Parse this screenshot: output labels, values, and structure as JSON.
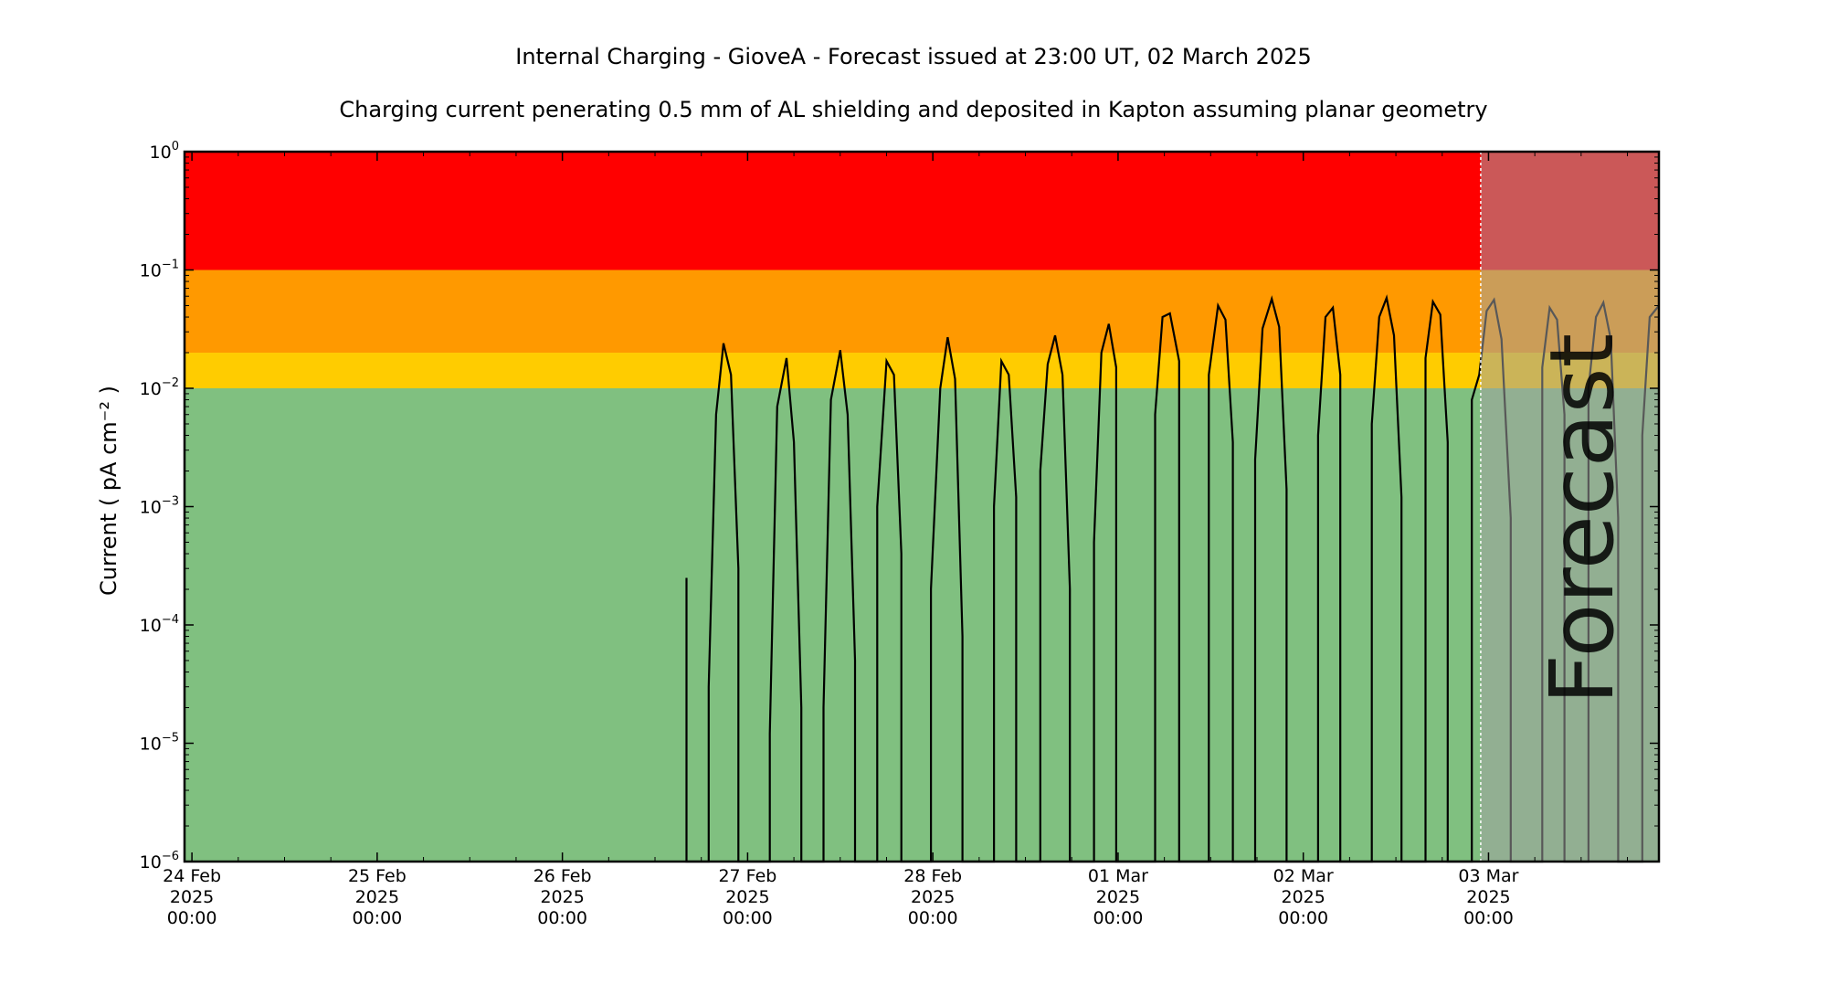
{
  "chart_data": {
    "type": "line",
    "title": "Internal Charging - GioveA - Forecast issued at 23:00 UT, 02 March 2025",
    "subtitle": "Charging current penerating 0.5 mm of AL shielding and deposited in Kapton assuming planar geometry",
    "ylabel": "Current ( pA cm⁻² )",
    "yscale": "log",
    "ylim_exp": [
      -6,
      0
    ],
    "y_tick_labels": [
      {
        "base": "10",
        "exp": "−6",
        "e": -6
      },
      {
        "base": "10",
        "exp": "−5",
        "e": -5
      },
      {
        "base": "10",
        "exp": "−4",
        "e": -4
      },
      {
        "base": "10",
        "exp": "−3",
        "e": -3
      },
      {
        "base": "10",
        "exp": "−2",
        "e": -2
      },
      {
        "base": "10",
        "exp": "−1",
        "e": -1
      },
      {
        "base": "10",
        "exp": "0",
        "e": 0
      }
    ],
    "x_unit": "days from 24 Feb 2025 00:00 UT",
    "xlim": [
      -0.04,
      7.92
    ],
    "x_tick_labels": [
      {
        "d": 0,
        "l1": "24 Feb",
        "l2": "2025",
        "l3": "00:00"
      },
      {
        "d": 1,
        "l1": "25 Feb",
        "l2": "2025",
        "l3": "00:00"
      },
      {
        "d": 2,
        "l1": "26 Feb",
        "l2": "2025",
        "l3": "00:00"
      },
      {
        "d": 3,
        "l1": "27 Feb",
        "l2": "2025",
        "l3": "00:00"
      },
      {
        "d": 4,
        "l1": "28 Feb",
        "l2": "2025",
        "l3": "00:00"
      },
      {
        "d": 5,
        "l1": "01 Mar",
        "l2": "2025",
        "l3": "00:00"
      },
      {
        "d": 6,
        "l1": "02 Mar",
        "l2": "2025",
        "l3": "00:00"
      },
      {
        "d": 7,
        "l1": "03 Mar",
        "l2": "2025",
        "l3": "00:00"
      }
    ],
    "thresholds": [
      {
        "from": 1e-06,
        "to": 0.01,
        "color": "#80c080"
      },
      {
        "from": 0.01,
        "to": 0.02,
        "color": "#ffcc00"
      },
      {
        "from": 0.02,
        "to": 0.1,
        "color": "#ff9900"
      },
      {
        "from": 0.1,
        "to": 1,
        "color": "#ff0000"
      }
    ],
    "forecast_start_day": 6.958,
    "forecast_label": "Forecast",
    "forecast_overlay_color": "#a0a0a0",
    "series": [
      {
        "points": [
          [
            2.67,
            1e-06
          ],
          [
            2.67,
            0.00025
          ],
          [
            2.67,
            1e-06
          ],
          [
            2.79,
            1e-06
          ],
          [
            2.79,
            3e-05
          ],
          [
            2.83,
            0.006
          ],
          [
            2.87,
            0.024
          ],
          [
            2.91,
            0.013
          ],
          [
            2.95,
            0.0003
          ],
          [
            2.95,
            1e-06
          ],
          [
            3.12,
            1e-06
          ],
          [
            3.12,
            1.2e-05
          ],
          [
            3.16,
            0.007
          ],
          [
            3.21,
            0.018
          ],
          [
            3.25,
            0.0035
          ],
          [
            3.29,
            2e-05
          ],
          [
            3.29,
            1e-06
          ],
          [
            3.41,
            1e-06
          ],
          [
            3.41,
            2e-05
          ],
          [
            3.45,
            0.008
          ],
          [
            3.5,
            0.021
          ],
          [
            3.54,
            0.006
          ],
          [
            3.58,
            5e-05
          ],
          [
            3.58,
            1e-06
          ],
          [
            3.7,
            1e-06
          ],
          [
            3.7,
            0.001
          ],
          [
            3.75,
            0.017
          ],
          [
            3.79,
            0.013
          ],
          [
            3.83,
            0.0004
          ],
          [
            3.83,
            1e-06
          ],
          [
            3.99,
            1e-06
          ],
          [
            3.99,
            0.0002
          ],
          [
            4.04,
            0.01
          ],
          [
            4.08,
            0.027
          ],
          [
            4.12,
            0.012
          ],
          [
            4.16,
            8e-05
          ],
          [
            4.16,
            1e-06
          ],
          [
            4.33,
            1e-06
          ],
          [
            4.33,
            0.001
          ],
          [
            4.37,
            0.017
          ],
          [
            4.41,
            0.013
          ],
          [
            4.45,
            0.0012
          ],
          [
            4.45,
            1e-06
          ],
          [
            4.58,
            1e-06
          ],
          [
            4.58,
            0.002
          ],
          [
            4.62,
            0.016
          ],
          [
            4.66,
            0.028
          ],
          [
            4.7,
            0.013
          ],
          [
            4.74,
            0.0002
          ],
          [
            4.74,
            1e-06
          ],
          [
            4.87,
            1e-06
          ],
          [
            4.87,
            0.0005
          ],
          [
            4.91,
            0.02
          ],
          [
            4.95,
            0.035
          ],
          [
            4.99,
            0.015
          ],
          [
            4.99,
            1e-06
          ],
          [
            5.2,
            1e-06
          ],
          [
            5.2,
            0.006
          ],
          [
            5.24,
            0.04
          ],
          [
            5.28,
            0.043
          ],
          [
            5.33,
            0.017
          ],
          [
            5.33,
            1e-06
          ],
          [
            5.49,
            1e-06
          ],
          [
            5.49,
            0.013
          ],
          [
            5.54,
            0.05
          ],
          [
            5.58,
            0.038
          ],
          [
            5.62,
            0.0035
          ],
          [
            5.62,
            1e-06
          ],
          [
            5.74,
            1e-06
          ],
          [
            5.74,
            0.0025
          ],
          [
            5.78,
            0.032
          ],
          [
            5.83,
            0.057
          ],
          [
            5.87,
            0.033
          ],
          [
            5.91,
            0.0014
          ],
          [
            5.91,
            1e-06
          ],
          [
            6.08,
            1e-06
          ],
          [
            6.08,
            0.004
          ],
          [
            6.12,
            0.04
          ],
          [
            6.16,
            0.048
          ],
          [
            6.2,
            0.013
          ],
          [
            6.2,
            1e-06
          ],
          [
            6.37,
            1e-06
          ],
          [
            6.37,
            0.005
          ],
          [
            6.41,
            0.04
          ],
          [
            6.45,
            0.058
          ],
          [
            6.49,
            0.028
          ],
          [
            6.53,
            0.0012
          ],
          [
            6.53,
            1e-06
          ],
          [
            6.66,
            1e-06
          ],
          [
            6.66,
            0.018
          ],
          [
            6.7,
            0.054
          ],
          [
            6.74,
            0.042
          ],
          [
            6.78,
            0.0035
          ],
          [
            6.78,
            1e-06
          ],
          [
            6.91,
            1e-06
          ],
          [
            6.91,
            0.008
          ],
          [
            6.95,
            0.013
          ],
          [
            6.99,
            0.045
          ],
          [
            7.03,
            0.056
          ],
          [
            7.07,
            0.026
          ],
          [
            7.12,
            0.0008
          ],
          [
            7.12,
            1e-06
          ],
          [
            7.29,
            1e-06
          ],
          [
            7.29,
            0.015
          ],
          [
            7.33,
            0.048
          ],
          [
            7.37,
            0.038
          ],
          [
            7.41,
            0.006
          ],
          [
            7.41,
            1e-06
          ],
          [
            7.54,
            1e-06
          ],
          [
            7.54,
            0.01
          ],
          [
            7.58,
            0.04
          ],
          [
            7.62,
            0.053
          ],
          [
            7.66,
            0.026
          ],
          [
            7.7,
            0.0008
          ],
          [
            7.7,
            1e-06
          ],
          [
            7.83,
            1e-06
          ],
          [
            7.83,
            0.004
          ],
          [
            7.87,
            0.04
          ],
          [
            7.92,
            0.05
          ]
        ]
      }
    ]
  }
}
